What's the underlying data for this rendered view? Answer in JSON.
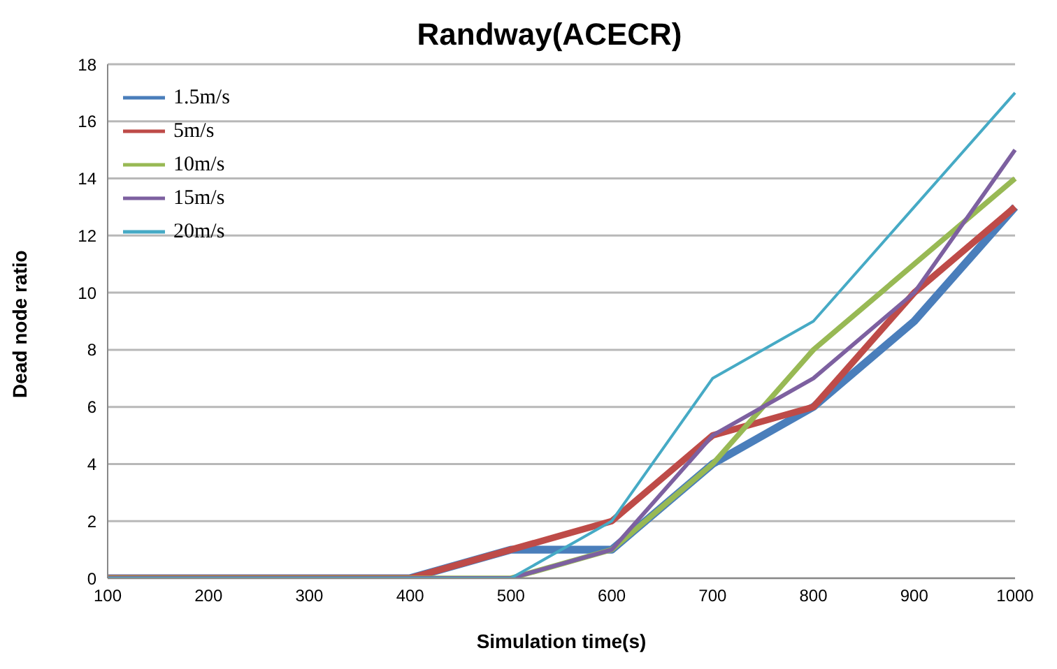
{
  "chart_data": {
    "type": "line",
    "title": "Randway(ACECR)",
    "xlabel": "Simulation time(s)",
    "ylabel": "Dead node ratio",
    "categories": [
      "100",
      "200",
      "300",
      "400",
      "500",
      "600",
      "700",
      "800",
      "900",
      "1000"
    ],
    "series": [
      {
        "name": "1.5m/s",
        "color": "#4a7ebb",
        "values": [
          0,
          0,
          0,
          0,
          1,
          1,
          4,
          6,
          9,
          13
        ]
      },
      {
        "name": "5m/s",
        "color": "#be4b48",
        "values": [
          0,
          0,
          0,
          0,
          1,
          2,
          5,
          6,
          10,
          13
        ]
      },
      {
        "name": "10m/s",
        "color": "#98b954",
        "values": [
          0,
          0,
          0,
          0,
          0,
          1,
          4,
          8,
          11,
          14
        ]
      },
      {
        "name": "15m/s",
        "color": "#7d60a0",
        "values": [
          0,
          0,
          0,
          0,
          0,
          1,
          5,
          7,
          10,
          15
        ]
      },
      {
        "name": "20m/s",
        "color": "#46aac5",
        "values": [
          0,
          0,
          0,
          0,
          0,
          2,
          7,
          9,
          13,
          17
        ]
      }
    ],
    "ylim": [
      0,
      18
    ],
    "yticks": [
      0,
      2,
      4,
      6,
      8,
      10,
      12,
      14,
      16,
      18
    ],
    "grid": "y",
    "legend": "top left",
    "marker": "none",
    "line_style": "solid"
  }
}
